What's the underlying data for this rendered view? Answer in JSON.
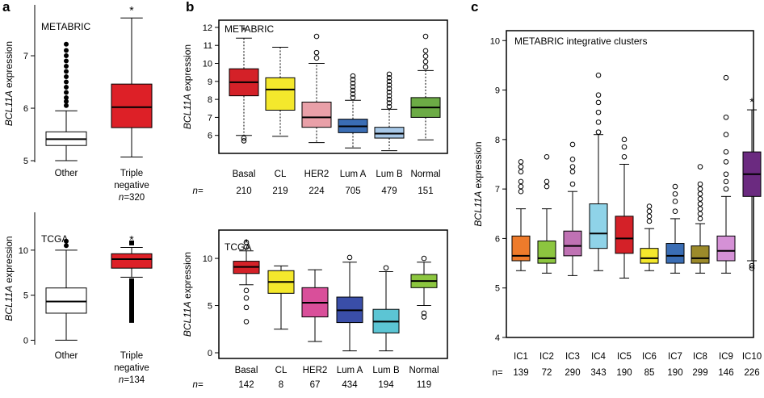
{
  "panel_letters": {
    "a": "a",
    "b": "b",
    "c": "c"
  },
  "n_prefix": "n=",
  "ylabel_gene": "BCL11A",
  "ylabel_suffix": " expression",
  "chart_data": [
    {
      "id": "a_metabric",
      "type": "box",
      "title": "METABRIC",
      "ylabel": "BCL11A expression",
      "ylim": [
        4.97,
        7.97
      ],
      "yticks": [
        5,
        6,
        7
      ],
      "categories": [
        "Other",
        "Triple negative"
      ],
      "n": [
        null,
        "320"
      ],
      "star": [
        false,
        true
      ],
      "colors": [
        "#ffffff",
        "#dd2027"
      ],
      "boxes": [
        {
          "low": 5.0,
          "q1": 5.29,
          "median": 5.41,
          "q3": 5.55,
          "high": 5.95,
          "outliers": [
            6.05,
            6.13,
            6.2,
            6.3,
            6.4,
            6.5,
            6.6,
            6.7,
            6.8,
            6.9,
            7.0,
            7.1,
            7.22
          ]
        },
        {
          "low": 5.07,
          "q1": 5.63,
          "median": 6.02,
          "q3": 6.46,
          "high": 7.72,
          "outliers": []
        }
      ]
    },
    {
      "id": "a_tcga",
      "type": "box",
      "title": "TCGA",
      "ylabel": "BCL11A expression",
      "ylim": [
        -0.5,
        14.2
      ],
      "yticks": [
        0,
        5,
        10
      ],
      "categories": [
        "Other",
        "Triple negative"
      ],
      "n": [
        null,
        "134"
      ],
      "star": [
        false,
        true
      ],
      "colors": [
        "#ffffff",
        "#dd2027"
      ],
      "boxes": [
        {
          "low": 0.0,
          "q1": 3.0,
          "median": 4.3,
          "q3": 5.8,
          "high": 10.0,
          "outliers": [
            10.5,
            11.0
          ]
        },
        {
          "low": 7.0,
          "q1": 8.0,
          "median": 9.0,
          "q3": 9.6,
          "high": 10.3,
          "outliers": [
            2.2,
            2.6,
            3.0,
            3.4,
            3.8,
            4.2,
            4.6,
            5.0,
            5.4,
            5.8,
            6.2,
            6.6,
            10.8
          ]
        }
      ]
    },
    {
      "id": "b_metabric",
      "type": "box",
      "title": "METABRIC",
      "ylabel": "BCL11A expression",
      "ylim": [
        5.0,
        12.4
      ],
      "yticks": [
        6,
        7,
        8,
        9,
        10,
        11,
        12
      ],
      "categories": [
        "Basal",
        "CL",
        "HER2",
        "Lum A",
        "Lum B",
        "Normal"
      ],
      "n": [
        "210",
        "219",
        "224",
        "705",
        "479",
        "151"
      ],
      "star": [
        true,
        false,
        false,
        false,
        false,
        false
      ],
      "colors": [
        "#d42128",
        "#f4e82c",
        "#e9a0a8",
        "#3a6db4",
        "#a7c8e8",
        "#6cab45"
      ],
      "boxes": [
        {
          "low": 6.0,
          "q1": 8.2,
          "median": 8.95,
          "q3": 9.7,
          "high": 11.4,
          "outliers": [
            5.85,
            5.7
          ]
        },
        {
          "low": 5.95,
          "q1": 7.4,
          "median": 8.55,
          "q3": 9.2,
          "high": 10.9,
          "outliers": []
        },
        {
          "low": 5.6,
          "q1": 6.45,
          "median": 7.0,
          "q3": 7.85,
          "high": 10.0,
          "outliers": [
            10.3,
            10.6,
            11.5
          ]
        },
        {
          "low": 5.3,
          "q1": 6.15,
          "median": 6.5,
          "q3": 6.9,
          "high": 7.95,
          "outliers": [
            8.1,
            8.3,
            8.5,
            8.7,
            8.9,
            9.1,
            9.3
          ]
        },
        {
          "low": 5.15,
          "q1": 5.85,
          "median": 6.1,
          "q3": 6.45,
          "high": 7.45,
          "outliers": [
            7.6,
            7.8,
            8.0,
            8.2,
            8.4,
            8.6,
            8.8,
            9.0,
            9.2,
            9.4
          ]
        },
        {
          "low": 5.75,
          "q1": 7.0,
          "median": 7.55,
          "q3": 8.1,
          "high": 9.6,
          "outliers": [
            9.8,
            10.1,
            10.4,
            10.7,
            11.5
          ]
        }
      ]
    },
    {
      "id": "b_tcga",
      "type": "box",
      "title": "TCGA",
      "ylabel": "BCL11A expression",
      "ylim": [
        -0.6,
        13.0
      ],
      "yticks": [
        0,
        5,
        10
      ],
      "categories": [
        "Basal",
        "CL",
        "HER2",
        "Lum A",
        "Lum B",
        "Normal"
      ],
      "n": [
        "142",
        "8",
        "67",
        "434",
        "194",
        "119"
      ],
      "star": [
        true,
        false,
        false,
        false,
        false,
        false
      ],
      "colors": [
        "#d42128",
        "#f4e82c",
        "#d94f9a",
        "#3a4ea8",
        "#5cc5d4",
        "#8cc63f"
      ],
      "boxes": [
        {
          "low": 7.2,
          "q1": 8.4,
          "median": 9.1,
          "q3": 9.7,
          "high": 10.8,
          "outliers": [
            3.3,
            4.8,
            5.8,
            6.6,
            11.2,
            11.7
          ]
        },
        {
          "low": 2.5,
          "q1": 6.3,
          "median": 7.5,
          "q3": 8.7,
          "high": 9.2,
          "outliers": []
        },
        {
          "low": 1.2,
          "q1": 3.8,
          "median": 5.3,
          "q3": 6.9,
          "high": 8.8,
          "outliers": []
        },
        {
          "low": 0.2,
          "q1": 3.2,
          "median": 4.5,
          "q3": 5.9,
          "high": 9.6,
          "outliers": [
            10.1
          ]
        },
        {
          "low": 0.2,
          "q1": 2.1,
          "median": 3.3,
          "q3": 4.6,
          "high": 8.6,
          "outliers": [
            9.0
          ]
        },
        {
          "low": 5.0,
          "q1": 6.9,
          "median": 7.6,
          "q3": 8.3,
          "high": 9.6,
          "outliers": [
            3.8,
            4.2,
            10.0
          ]
        }
      ]
    },
    {
      "id": "c",
      "type": "box",
      "title": "METABRIC integrative clusters",
      "ylabel": "BCL11A expression",
      "ylim": [
        4.0,
        10.2
      ],
      "yticks": [
        4,
        5,
        6,
        7,
        8,
        9,
        10
      ],
      "categories": [
        "IC1",
        "IC2",
        "IC3",
        "IC4",
        "IC5",
        "IC6",
        "IC7",
        "IC8",
        "IC9",
        "IC10"
      ],
      "n": [
        "139",
        "72",
        "290",
        "343",
        "190",
        "85",
        "190",
        "299",
        "146",
        "226"
      ],
      "star": [
        false,
        false,
        false,
        false,
        false,
        false,
        false,
        false,
        false,
        true
      ],
      "colors": [
        "#ee7b2b",
        "#8cc63f",
        "#c072b4",
        "#8fd3e8",
        "#d42128",
        "#f4e82c",
        "#3a6db4",
        "#9c8a2a",
        "#d591d6",
        "#6b2a80"
      ],
      "boxes": [
        {
          "low": 5.35,
          "q1": 5.55,
          "median": 5.65,
          "q3": 6.05,
          "high": 6.6,
          "outliers": [
            6.95,
            7.05,
            7.15,
            7.35,
            7.45,
            7.55
          ]
        },
        {
          "low": 5.3,
          "q1": 5.5,
          "median": 5.6,
          "q3": 5.95,
          "high": 6.6,
          "outliers": [
            7.05,
            7.15,
            7.65
          ]
        },
        {
          "low": 5.25,
          "q1": 5.65,
          "median": 5.85,
          "q3": 6.15,
          "high": 6.95,
          "outliers": [
            7.1,
            7.35,
            7.45,
            7.6,
            7.9
          ]
        },
        {
          "low": 5.35,
          "q1": 5.8,
          "median": 6.1,
          "q3": 6.7,
          "high": 8.1,
          "outliers": [
            8.15,
            8.35,
            8.55,
            8.75,
            8.9,
            9.3
          ]
        },
        {
          "low": 5.2,
          "q1": 5.7,
          "median": 6.0,
          "q3": 6.45,
          "high": 7.5,
          "outliers": [
            7.65,
            7.85,
            8.0
          ]
        },
        {
          "low": 5.35,
          "q1": 5.5,
          "median": 5.6,
          "q3": 5.8,
          "high": 6.2,
          "outliers": [
            6.35,
            6.45,
            6.55,
            6.65
          ]
        },
        {
          "low": 5.3,
          "q1": 5.5,
          "median": 5.65,
          "q3": 5.9,
          "high": 6.4,
          "outliers": [
            6.55,
            6.75,
            6.9,
            7.05
          ]
        },
        {
          "low": 5.3,
          "q1": 5.5,
          "median": 5.6,
          "q3": 5.85,
          "high": 6.3,
          "outliers": [
            6.4,
            6.5,
            6.6,
            6.7,
            6.8,
            6.9,
            7.0,
            7.1,
            7.45
          ]
        },
        {
          "low": 5.3,
          "q1": 5.55,
          "median": 5.75,
          "q3": 6.05,
          "high": 6.85,
          "outliers": [
            7.0,
            7.15,
            7.3,
            7.55,
            7.75,
            8.1,
            8.45,
            9.25
          ]
        },
        {
          "low": 5.55,
          "q1": 6.85,
          "median": 7.3,
          "q3": 7.75,
          "high": 8.6,
          "outliers": [
            5.4,
            5.45
          ]
        }
      ]
    }
  ]
}
